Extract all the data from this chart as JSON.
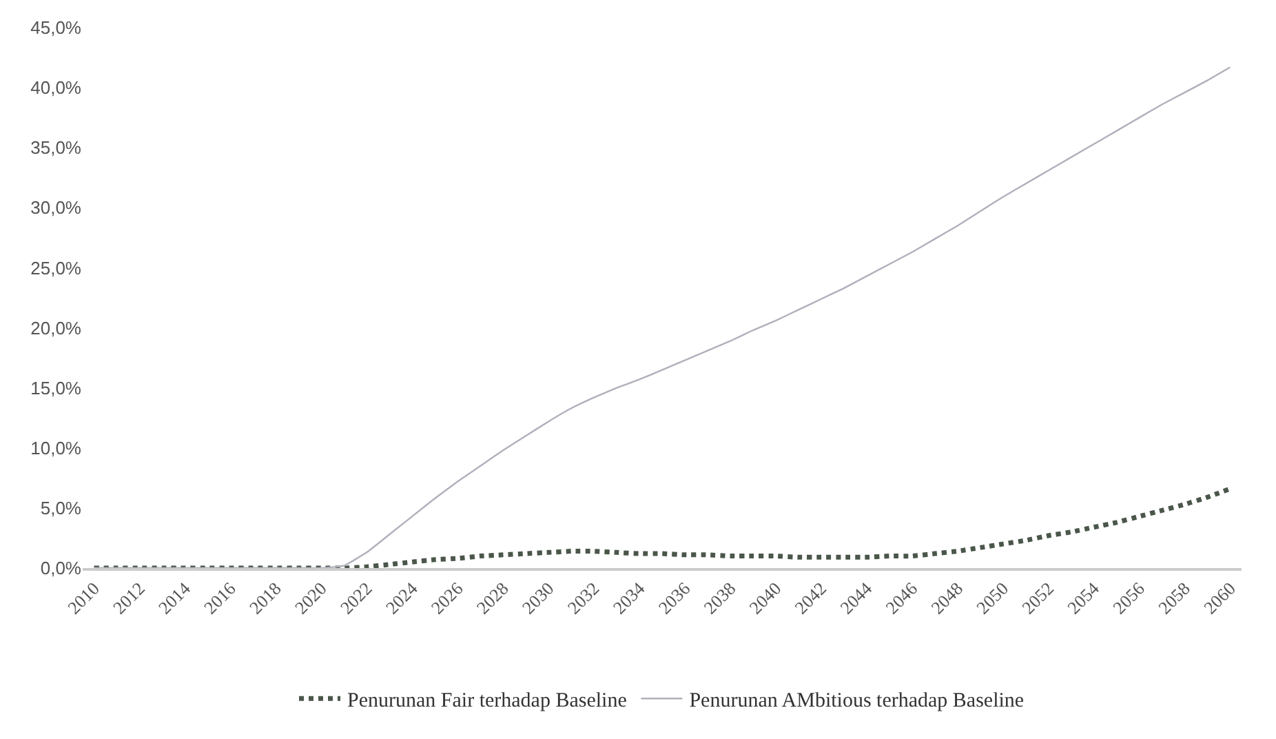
{
  "chart_data": {
    "type": "line",
    "x": [
      2010,
      2011,
      2012,
      2013,
      2014,
      2015,
      2016,
      2017,
      2018,
      2019,
      2020,
      2021,
      2022,
      2023,
      2024,
      2025,
      2026,
      2027,
      2028,
      2029,
      2030,
      2031,
      2032,
      2033,
      2034,
      2035,
      2036,
      2037,
      2038,
      2039,
      2040,
      2041,
      2042,
      2043,
      2044,
      2045,
      2046,
      2047,
      2048,
      2049,
      2050,
      2051,
      2052,
      2053,
      2054,
      2055,
      2056,
      2057,
      2058,
      2059,
      2060
    ],
    "series": [
      {
        "name": "Penurunan Fair terhadap Baseline",
        "color": "#4a564a",
        "line_style": "dotted",
        "values": [
          0,
          0,
          0,
          0,
          0,
          0,
          0,
          0,
          0,
          0,
          0,
          0,
          0.1,
          0.3,
          0.5,
          0.7,
          0.8,
          1.0,
          1.1,
          1.2,
          1.3,
          1.4,
          1.4,
          1.3,
          1.2,
          1.2,
          1.1,
          1.1,
          1.0,
          1.0,
          1.0,
          0.9,
          0.9,
          0.9,
          0.9,
          1.0,
          1.0,
          1.2,
          1.4,
          1.7,
          2.0,
          2.3,
          2.7,
          3.0,
          3.4,
          3.8,
          4.3,
          4.8,
          5.3,
          5.9,
          6.6
        ]
      },
      {
        "name": "Penurunan AMbitious terhadap Baseline",
        "color": "#b0b0bc",
        "line_style": "solid",
        "values": [
          0,
          0,
          0,
          0,
          0,
          0,
          0,
          0,
          0,
          0,
          0,
          0.2,
          1.3,
          2.8,
          4.3,
          5.8,
          7.2,
          8.5,
          9.8,
          11.0,
          12.2,
          13.3,
          14.2,
          15.0,
          15.7,
          16.5,
          17.3,
          18.1,
          18.9,
          19.8,
          20.6,
          21.5,
          22.4,
          23.3,
          24.3,
          25.3,
          26.3,
          27.4,
          28.5,
          29.7,
          30.9,
          32.0,
          33.1,
          34.2,
          35.3,
          36.4,
          37.5,
          38.6,
          39.6,
          40.6,
          41.7
        ]
      }
    ],
    "xlim": [
      2009.5,
      2060.5
    ],
    "xticks": [
      2010,
      2012,
      2014,
      2016,
      2018,
      2020,
      2022,
      2024,
      2026,
      2028,
      2030,
      2032,
      2034,
      2036,
      2038,
      2040,
      2042,
      2044,
      2046,
      2048,
      2050,
      2052,
      2054,
      2056,
      2058,
      2060
    ],
    "ylim": [
      0,
      45
    ],
    "yticks": [
      {
        "value": 0,
        "label": "0,0%"
      },
      {
        "value": 5,
        "label": "5,0%"
      },
      {
        "value": 10,
        "label": "10,0%"
      },
      {
        "value": 15,
        "label": "15,0%"
      },
      {
        "value": 20,
        "label": "20,0%"
      },
      {
        "value": 25,
        "label": "25,0%"
      },
      {
        "value": 30,
        "label": "30,0%"
      },
      {
        "value": 35,
        "label": "35,0%"
      },
      {
        "value": 40,
        "label": "40,0%"
      },
      {
        "value": 45,
        "label": "45,0%"
      }
    ],
    "grid": false,
    "legend": "bottom",
    "marker": "none"
  }
}
